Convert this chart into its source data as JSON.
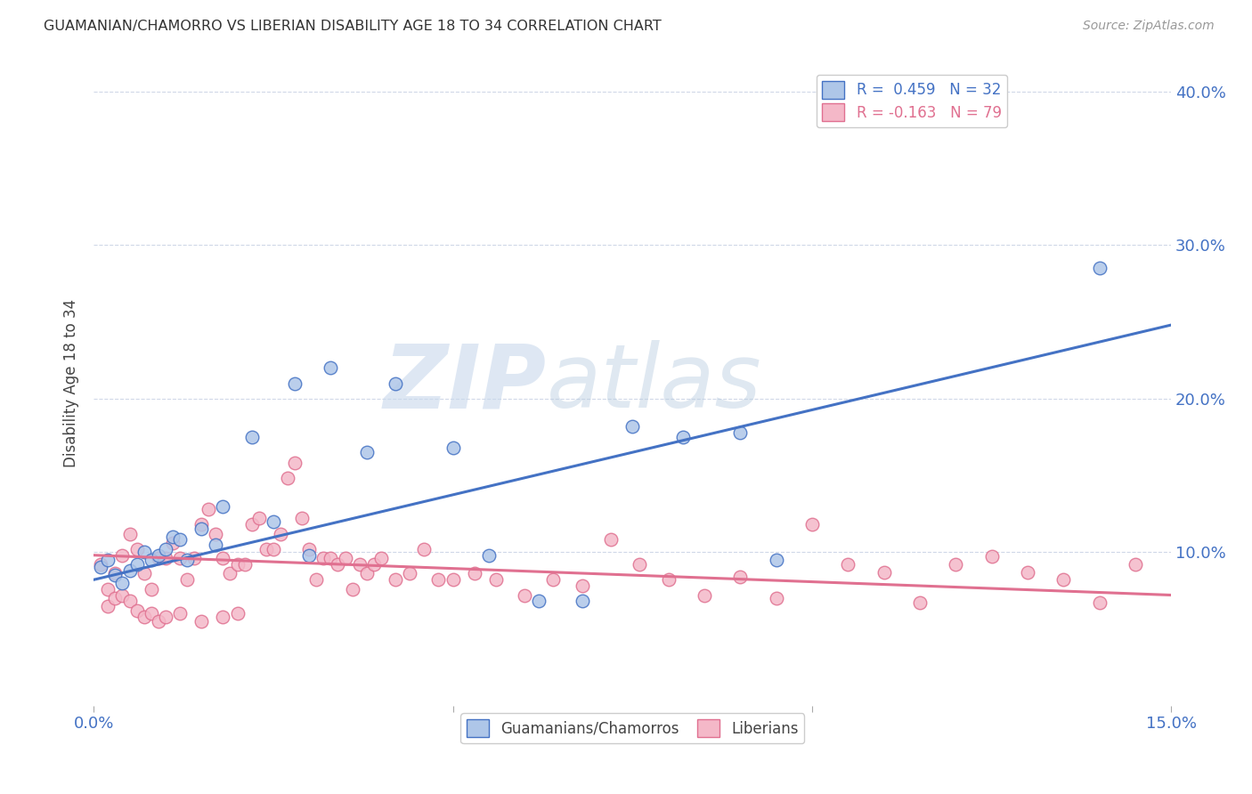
{
  "title": "GUAMANIAN/CHAMORRO VS LIBERIAN DISABILITY AGE 18 TO 34 CORRELATION CHART",
  "source": "Source: ZipAtlas.com",
  "xlabel": "",
  "ylabel": "Disability Age 18 to 34",
  "xlim": [
    0.0,
    0.15
  ],
  "ylim": [
    0.0,
    0.42
  ],
  "xticks": [
    0.0,
    0.05,
    0.1,
    0.15
  ],
  "xticklabels": [
    "0.0%",
    "",
    "",
    "15.0%"
  ],
  "yticks_right": [
    0.1,
    0.2,
    0.3,
    0.4
  ],
  "yticklabels_right": [
    "10.0%",
    "20.0%",
    "30.0%",
    "40.0%"
  ],
  "blue_color": "#aec6e8",
  "blue_line_color": "#4472c4",
  "pink_color": "#f4b8c8",
  "pink_line_color": "#e07090",
  "R_blue": 0.459,
  "N_blue": 32,
  "R_pink": -0.163,
  "N_pink": 79,
  "legend_label_blue": "Guamanians/Chamorros",
  "legend_label_pink": "Liberians",
  "watermark_zip": "ZIP",
  "watermark_atlas": "atlas",
  "background_color": "#ffffff",
  "blue_line_x0": 0.0,
  "blue_line_y0": 0.082,
  "blue_line_x1": 0.15,
  "blue_line_y1": 0.248,
  "pink_line_x0": 0.0,
  "pink_line_y0": 0.098,
  "pink_line_x1": 0.15,
  "pink_line_y1": 0.072,
  "blue_scatter_x": [
    0.001,
    0.002,
    0.003,
    0.004,
    0.005,
    0.006,
    0.007,
    0.008,
    0.009,
    0.01,
    0.011,
    0.012,
    0.013,
    0.015,
    0.017,
    0.018,
    0.022,
    0.025,
    0.028,
    0.03,
    0.033,
    0.038,
    0.042,
    0.05,
    0.055,
    0.062,
    0.068,
    0.075,
    0.082,
    0.09,
    0.095,
    0.14
  ],
  "blue_scatter_y": [
    0.09,
    0.095,
    0.085,
    0.08,
    0.088,
    0.092,
    0.1,
    0.095,
    0.098,
    0.102,
    0.11,
    0.108,
    0.095,
    0.115,
    0.105,
    0.13,
    0.175,
    0.12,
    0.21,
    0.098,
    0.22,
    0.165,
    0.21,
    0.168,
    0.098,
    0.068,
    0.068,
    0.182,
    0.175,
    0.178,
    0.095,
    0.285
  ],
  "pink_scatter_x": [
    0.001,
    0.002,
    0.003,
    0.004,
    0.005,
    0.006,
    0.007,
    0.008,
    0.009,
    0.01,
    0.011,
    0.012,
    0.013,
    0.014,
    0.015,
    0.016,
    0.017,
    0.018,
    0.019,
    0.02,
    0.021,
    0.022,
    0.023,
    0.024,
    0.025,
    0.026,
    0.027,
    0.028,
    0.029,
    0.03,
    0.031,
    0.032,
    0.033,
    0.034,
    0.035,
    0.036,
    0.037,
    0.038,
    0.039,
    0.04,
    0.042,
    0.044,
    0.046,
    0.048,
    0.05,
    0.053,
    0.056,
    0.06,
    0.064,
    0.068,
    0.072,
    0.076,
    0.08,
    0.085,
    0.09,
    0.095,
    0.1,
    0.105,
    0.11,
    0.115,
    0.12,
    0.125,
    0.13,
    0.135,
    0.14,
    0.145,
    0.002,
    0.003,
    0.004,
    0.005,
    0.006,
    0.007,
    0.008,
    0.009,
    0.01,
    0.012,
    0.015,
    0.018,
    0.02
  ],
  "pink_scatter_y": [
    0.092,
    0.076,
    0.086,
    0.098,
    0.112,
    0.102,
    0.086,
    0.076,
    0.096,
    0.096,
    0.106,
    0.096,
    0.082,
    0.096,
    0.118,
    0.128,
    0.112,
    0.096,
    0.086,
    0.092,
    0.092,
    0.118,
    0.122,
    0.102,
    0.102,
    0.112,
    0.148,
    0.158,
    0.122,
    0.102,
    0.082,
    0.096,
    0.096,
    0.092,
    0.096,
    0.076,
    0.092,
    0.086,
    0.092,
    0.096,
    0.082,
    0.086,
    0.102,
    0.082,
    0.082,
    0.086,
    0.082,
    0.072,
    0.082,
    0.078,
    0.108,
    0.092,
    0.082,
    0.072,
    0.084,
    0.07,
    0.118,
    0.092,
    0.087,
    0.067,
    0.092,
    0.097,
    0.087,
    0.082,
    0.067,
    0.092,
    0.065,
    0.07,
    0.072,
    0.068,
    0.062,
    0.058,
    0.06,
    0.055,
    0.058,
    0.06,
    0.055,
    0.058,
    0.06
  ]
}
